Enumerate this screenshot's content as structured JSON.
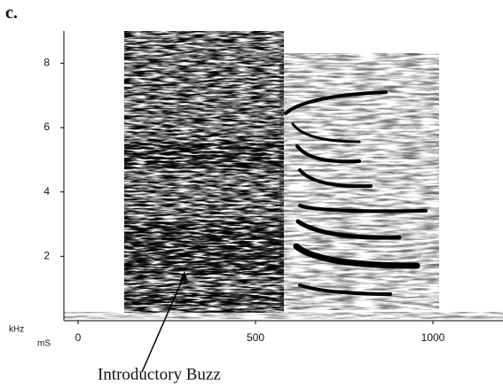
{
  "chart_data": {
    "type": "spectrogram",
    "panel_label": "c.",
    "x_label": "mS",
    "y_label": "kHz",
    "annotation": "Introductory Buzz",
    "xlim": [
      -40,
      1200
    ],
    "ylim": [
      0,
      9
    ],
    "xticks": [
      0,
      500,
      1000
    ],
    "yticks": [
      2,
      4,
      6,
      8
    ]
  }
}
